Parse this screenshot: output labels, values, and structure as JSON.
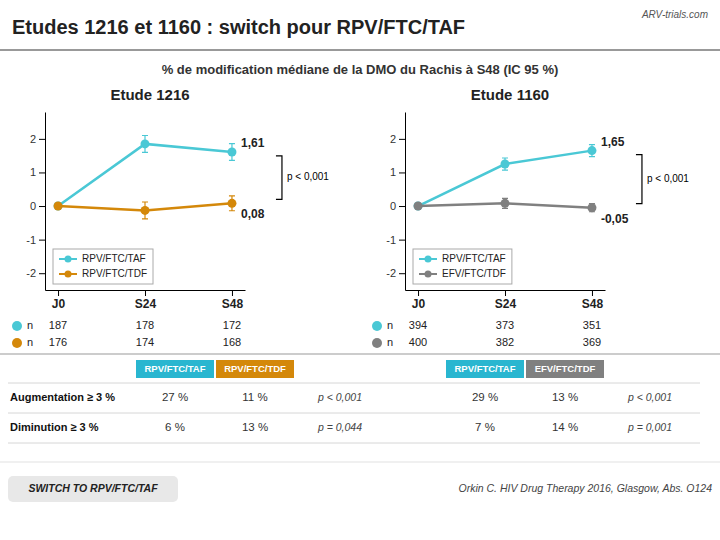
{
  "title": "Etudes 1216 et 1160 : switch pour RPV/FTC/TAF",
  "subtitle": "% de modification médiane de la DMO du Rachis à S48 (IC 95 %)",
  "credit": "ARV-trials.com",
  "chart_data": [
    {
      "type": "line",
      "title": "Etude 1216",
      "categories": [
        "J0",
        "S24",
        "S48"
      ],
      "ylim": [
        -2.5,
        2.8
      ],
      "yticks": [
        -2,
        -1,
        0,
        1,
        2
      ],
      "grid": false,
      "legend": "lower left",
      "n_label": "n",
      "series": [
        {
          "name": "RPV/FTC/TAF",
          "color": "#4ac8d5",
          "marker": "circle",
          "values": [
            0.0,
            1.85,
            1.61
          ],
          "errors": [
            0.05,
            0.25,
            0.25
          ],
          "value_labels": [
            null,
            null,
            "1,61"
          ],
          "n": [
            187,
            178,
            172
          ]
        },
        {
          "name": "RPV/FTC/TDF",
          "color": "#d4880a",
          "marker": "circle",
          "values": [
            0.0,
            -0.13,
            0.08
          ],
          "errors": [
            0.05,
            0.25,
            0.22
          ],
          "value_labels": [
            null,
            null,
            "0,08"
          ],
          "n": [
            176,
            174,
            168
          ]
        }
      ],
      "annotations": [
        "p < 0,001"
      ],
      "table": {
        "columns": [
          "RPV/FTC/TAF",
          "RPV/FTC/TDF"
        ],
        "colors": [
          "#29b6d0",
          "#d4880a"
        ],
        "rows": [
          [
            "27 %",
            "11 %",
            "p < 0,001"
          ],
          [
            "6 %",
            "13 %",
            "p = 0,044"
          ]
        ]
      }
    },
    {
      "type": "line",
      "title": "Etude 1160",
      "categories": [
        "J0",
        "S24",
        "S48"
      ],
      "ylim": [
        -2.5,
        2.8
      ],
      "yticks": [
        -2,
        -1,
        0,
        1,
        2
      ],
      "grid": false,
      "legend": "lower left",
      "n_label": "n",
      "series": [
        {
          "name": "RPV/FTC/TAF",
          "color": "#4ac8d5",
          "marker": "circle",
          "values": [
            0.0,
            1.25,
            1.65
          ],
          "errors": [
            0.05,
            0.18,
            0.18
          ],
          "value_labels": [
            null,
            null,
            "1,65"
          ],
          "n": [
            394,
            373,
            351
          ]
        },
        {
          "name": "EFV/FTC/TDF",
          "color": "#808080",
          "marker": "circle",
          "values": [
            0.0,
            0.08,
            -0.05
          ],
          "errors": [
            0.05,
            0.15,
            0.12
          ],
          "value_labels": [
            null,
            null,
            "-0,05"
          ],
          "n": [
            400,
            382,
            369
          ]
        }
      ],
      "annotations": [
        "p < 0,001"
      ],
      "table": {
        "columns": [
          "RPV/FTC/TAF",
          "EFV/FTC/TDF"
        ],
        "colors": [
          "#29b6d0",
          "#808080"
        ],
        "rows": [
          [
            "29 %",
            "13 %",
            "p < 0,001"
          ],
          [
            "7 %",
            "14 %",
            "p = 0,001"
          ]
        ]
      }
    }
  ],
  "table_row_labels": [
    "Augmentation ≥ 3 %",
    "Diminution ≥ 3 %"
  ],
  "footer": {
    "badge": "SWITCH TO RPV/FTC/TAF",
    "source": "Orkin C. HIV Drug Therapy 2016, Glasgow, Abs. O124"
  }
}
